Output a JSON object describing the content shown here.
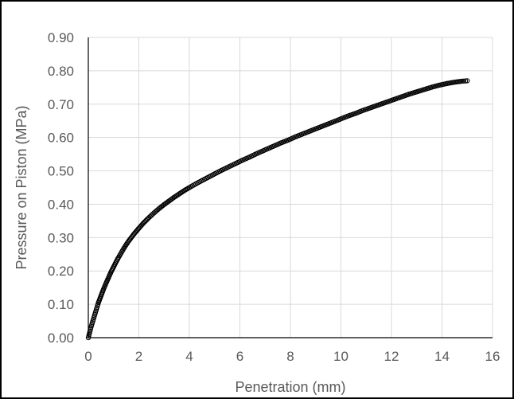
{
  "chart_data": {
    "type": "scatter",
    "title": "",
    "xlabel": "Penetration (mm)",
    "ylabel": "Pressure on Piston (MPa)",
    "xlim": [
      0,
      16
    ],
    "ylim": [
      0,
      0.9
    ],
    "x_ticks": [
      "0",
      "2",
      "4",
      "6",
      "8",
      "10",
      "12",
      "14",
      "16"
    ],
    "y_ticks": [
      "0.00",
      "0.10",
      "0.20",
      "0.30",
      "0.40",
      "0.50",
      "0.60",
      "0.70",
      "0.80",
      "0.90"
    ],
    "grid": true,
    "legend": "none",
    "marker_color": "#000000",
    "series": [
      {
        "x": [
          0.0,
          0.1,
          0.2,
          0.3,
          0.4,
          0.5,
          0.6,
          0.7,
          0.8,
          0.9,
          1.0,
          1.1,
          1.2,
          1.3,
          1.4,
          1.5,
          1.6,
          1.7,
          1.8,
          1.9,
          2.0,
          2.2,
          2.4,
          2.6,
          2.8,
          3.0,
          3.2,
          3.4,
          3.6,
          3.8,
          4.0,
          4.3,
          4.6,
          4.9,
          5.2,
          5.5,
          5.8,
          6.1,
          6.4,
          6.7,
          7.0,
          7.3,
          7.6,
          7.9,
          8.2,
          8.5,
          8.8,
          9.1,
          9.4,
          9.7,
          10.0,
          10.3,
          10.6,
          10.9,
          11.2,
          11.5,
          11.8,
          12.1,
          12.4,
          12.7,
          13.0,
          13.3,
          13.6,
          13.9,
          14.2,
          14.5,
          14.8,
          15.0
        ],
        "y": [
          0.0,
          0.03,
          0.055,
          0.08,
          0.105,
          0.125,
          0.145,
          0.163,
          0.18,
          0.197,
          0.212,
          0.227,
          0.241,
          0.254,
          0.267,
          0.279,
          0.29,
          0.3,
          0.31,
          0.319,
          0.328,
          0.345,
          0.36,
          0.374,
          0.387,
          0.399,
          0.41,
          0.421,
          0.431,
          0.441,
          0.45,
          0.463,
          0.475,
          0.487,
          0.499,
          0.51,
          0.521,
          0.532,
          0.542,
          0.553,
          0.563,
          0.573,
          0.583,
          0.592,
          0.602,
          0.611,
          0.62,
          0.629,
          0.638,
          0.647,
          0.656,
          0.665,
          0.673,
          0.682,
          0.69,
          0.698,
          0.706,
          0.714,
          0.722,
          0.73,
          0.737,
          0.744,
          0.751,
          0.757,
          0.762,
          0.766,
          0.769,
          0.77
        ]
      }
    ]
  }
}
